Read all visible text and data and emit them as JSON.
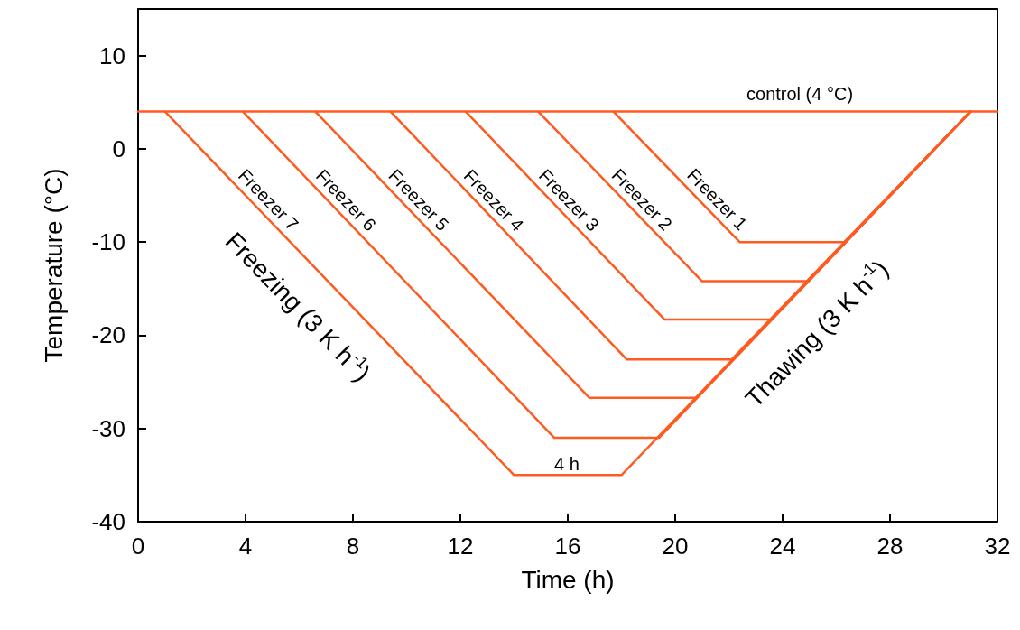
{
  "chart_data": {
    "type": "line",
    "xlabel": "Time (h)",
    "ylabel": "Temperature (°C)",
    "xlim": [
      0,
      32
    ],
    "xticks": [
      0,
      4,
      8,
      12,
      16,
      20,
      24,
      28,
      32
    ],
    "ylim": [
      -40,
      15
    ],
    "yticks": [
      -40,
      -30,
      -20,
      -10,
      0,
      10
    ],
    "grid": false,
    "legend": false,
    "marker": "none",
    "line_style": "solid",
    "series": [
      {
        "name": "control (4 °C)",
        "color": "#ff5a1f",
        "x": [
          0,
          32
        ],
        "values": [
          4,
          4
        ]
      },
      {
        "name": "Freezer 1",
        "color": "#ff5a1f",
        "x": [
          17.7,
          22.4,
          26.3,
          31
        ],
        "values": [
          4,
          -10,
          -10,
          4
        ]
      },
      {
        "name": "Freezer 2",
        "color": "#ff5a1f",
        "x": [
          14.9,
          21.0,
          24.9,
          31
        ],
        "values": [
          4,
          -14.2,
          -14.2,
          4
        ]
      },
      {
        "name": "Freezer 3",
        "color": "#ff5a1f",
        "x": [
          12.2,
          19.6,
          23.6,
          31
        ],
        "values": [
          4,
          -18.3,
          -18.3,
          4
        ]
      },
      {
        "name": "Freezer 4",
        "color": "#ff5a1f",
        "x": [
          9.4,
          18.2,
          22.1,
          31
        ],
        "values": [
          4,
          -22.6,
          -22.6,
          4
        ]
      },
      {
        "name": "Freezer 5",
        "color": "#ff5a1f",
        "x": [
          6.6,
          16.8,
          20.8,
          31
        ],
        "values": [
          4,
          -26.7,
          -26.7,
          4
        ]
      },
      {
        "name": "Freezer 6",
        "color": "#ff5a1f",
        "x": [
          3.9,
          15.5,
          19.4,
          31
        ],
        "values": [
          4,
          -31,
          -31,
          4
        ]
      },
      {
        "name": "Freezer 7",
        "color": "#ff5a1f",
        "x": [
          1,
          14,
          18,
          31
        ],
        "values": [
          4,
          -35,
          -35,
          4
        ]
      }
    ],
    "annotations": [
      "Freezing (3 K h$^{-1}$)",
      "Thawing (3 K h$^{-1}$)",
      "4 h"
    ]
  }
}
